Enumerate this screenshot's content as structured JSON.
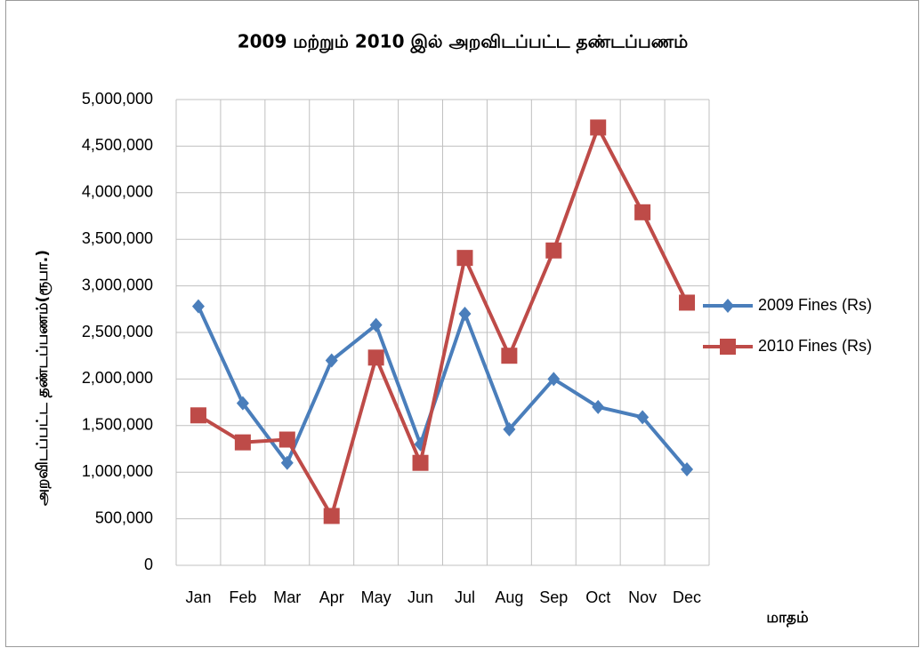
{
  "chart_data": {
    "type": "line",
    "title": "2009 மற்றும் 2010 இல் அறவிடப்பட்ட தண்டப்பணம்",
    "y_label": "அறவிடப்பட்ட தண்டப்பணம்(ரூபா.)",
    "x_label": "மாதம்",
    "categories": [
      "Jan",
      "Feb",
      "Mar",
      "Apr",
      "May",
      "Jun",
      "Jul",
      "Aug",
      "Sep",
      "Oct",
      "Nov",
      "Dec"
    ],
    "series": [
      {
        "name": "2009 Fines (Rs)",
        "color": "#4a7ebb",
        "marker": "diamond",
        "values": [
          2780000,
          1740000,
          1100000,
          2200000,
          2580000,
          1300000,
          2700000,
          1460000,
          2000000,
          1700000,
          1590000,
          1030000
        ]
      },
      {
        "name": "2010 Fines (Rs)",
        "color": "#be4b48",
        "marker": "square",
        "values": [
          1610000,
          1320000,
          1350000,
          530000,
          2230000,
          1100000,
          3300000,
          2250000,
          3380000,
          4700000,
          3790000,
          2820000
        ]
      }
    ],
    "ylim": [
      0,
      5000000
    ],
    "yticks": [
      0,
      {
        "value": 500000,
        "label": "500,000"
      },
      {
        "value": 1000000,
        "label": "1,000,000"
      },
      {
        "value": 1500000,
        "label": "1,500,000"
      },
      {
        "value": 2000000,
        "label": "2,000,000"
      },
      {
        "value": 2500000,
        "label": "2,500,000"
      },
      {
        "value": 3000000,
        "label": "3,000,000"
      },
      {
        "value": 3500000,
        "label": "3,500,000"
      },
      {
        "value": 4000000,
        "label": "4,000,000"
      },
      {
        "value": 4500000,
        "label": "4,500,000"
      },
      {
        "value": 5000000,
        "label": "5,000,000"
      }
    ],
    "grid": true,
    "legend": "right"
  }
}
